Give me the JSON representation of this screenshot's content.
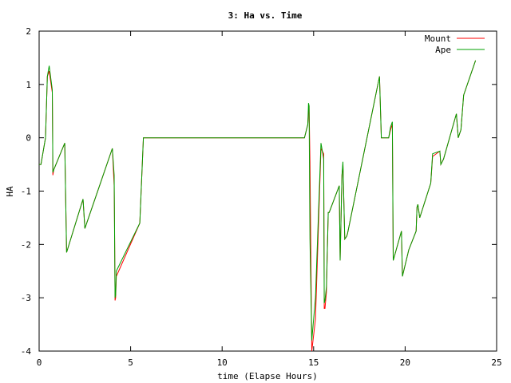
{
  "chart_data": {
    "type": "line",
    "title": "3: Ha vs. Time",
    "xlabel": "time (Elapse Hours)",
    "ylabel": "HA",
    "xlim": [
      0,
      25
    ],
    "ylim": [
      -4,
      2
    ],
    "xticks": [
      0,
      5,
      10,
      15,
      20,
      25
    ],
    "yticks": [
      -4,
      -3,
      -2,
      -1,
      0,
      1,
      2
    ],
    "grid": false,
    "legend": "top-right",
    "series": [
      {
        "name": "Mount",
        "color": "#ff0000",
        "x": [
          0,
          0.1,
          0.35,
          0.45,
          0.55,
          0.72,
          0.74,
          0.75,
          0.8,
          1.4,
          1.5,
          2.4,
          2.5,
          4.0,
          4.1,
          4.12,
          4.15,
          4.18,
          4.22,
          5.5,
          5.7,
          14.5,
          14.68,
          14.72,
          14.75,
          14.8,
          14.9,
          15.1,
          15.4,
          15.55,
          15.58,
          15.62,
          15.7,
          15.8,
          15.85,
          16.4,
          16.45,
          16.55,
          16.6,
          16.7,
          16.8,
          16.85,
          18.6,
          18.7,
          19.1,
          19.2,
          19.3,
          19.35,
          19.8,
          19.85,
          20.2,
          20.6,
          20.65,
          20.7,
          20.8,
          21.4,
          21.5,
          21.9,
          21.95,
          22.1,
          22.8,
          22.9,
          23.05,
          23.2,
          23.85
        ],
        "y": [
          -0.5,
          -0.5,
          0.0,
          1.15,
          1.25,
          0.85,
          -0.15,
          -0.7,
          -0.6,
          -0.1,
          -2.15,
          -1.15,
          -1.7,
          -0.2,
          -0.9,
          -1.5,
          -3.05,
          -3.0,
          -2.6,
          -1.6,
          0.0,
          0.0,
          0.25,
          0.5,
          0.6,
          -0.45,
          -4.0,
          -3.4,
          -0.2,
          -0.3,
          -3.2,
          -3.2,
          -2.9,
          -1.4,
          -1.4,
          -0.9,
          -2.3,
          -0.7,
          -0.5,
          -1.9,
          -1.85,
          -1.8,
          1.15,
          0.0,
          0.0,
          0.15,
          0.25,
          -2.3,
          -1.75,
          -2.6,
          -2.1,
          -1.75,
          -1.3,
          -1.25,
          -1.5,
          -0.85,
          -0.35,
          -0.25,
          -0.5,
          -0.4,
          0.45,
          0.0,
          0.15,
          0.8,
          1.45
        ]
      },
      {
        "name": "Ape",
        "color": "#00a000",
        "x": [
          0,
          0.1,
          0.35,
          0.45,
          0.55,
          0.72,
          0.74,
          0.75,
          0.8,
          1.4,
          1.5,
          2.4,
          2.5,
          4.0,
          4.1,
          4.12,
          4.15,
          4.18,
          4.22,
          5.5,
          5.7,
          14.5,
          14.68,
          14.72,
          14.75,
          14.8,
          14.9,
          15.1,
          15.4,
          15.55,
          15.58,
          15.62,
          15.7,
          15.8,
          15.85,
          16.4,
          16.45,
          16.55,
          16.6,
          16.7,
          16.8,
          16.85,
          18.6,
          18.7,
          19.1,
          19.2,
          19.3,
          19.35,
          19.8,
          19.85,
          20.2,
          20.6,
          20.65,
          20.7,
          20.8,
          21.4,
          21.5,
          21.9,
          21.95,
          22.1,
          22.8,
          22.9,
          23.05,
          23.2,
          23.85
        ],
        "y": [
          -0.5,
          -0.5,
          0.0,
          1.15,
          1.35,
          0.9,
          -0.15,
          -0.65,
          -0.6,
          -0.1,
          -2.15,
          -1.15,
          -1.7,
          -0.2,
          -0.7,
          -1.6,
          -3.0,
          -2.95,
          -2.5,
          -1.6,
          0.0,
          0.0,
          0.25,
          0.65,
          0.6,
          -1.9,
          -3.8,
          -3.0,
          -0.1,
          -0.4,
          -3.1,
          -3.05,
          -2.8,
          -1.4,
          -1.4,
          -0.9,
          -2.3,
          -0.7,
          -0.45,
          -1.9,
          -1.85,
          -1.8,
          1.15,
          0.0,
          0.0,
          0.2,
          0.3,
          -2.3,
          -1.75,
          -2.6,
          -2.1,
          -1.75,
          -1.3,
          -1.25,
          -1.5,
          -0.85,
          -0.3,
          -0.25,
          -0.5,
          -0.4,
          0.45,
          0.0,
          0.15,
          0.8,
          1.45
        ]
      }
    ]
  }
}
